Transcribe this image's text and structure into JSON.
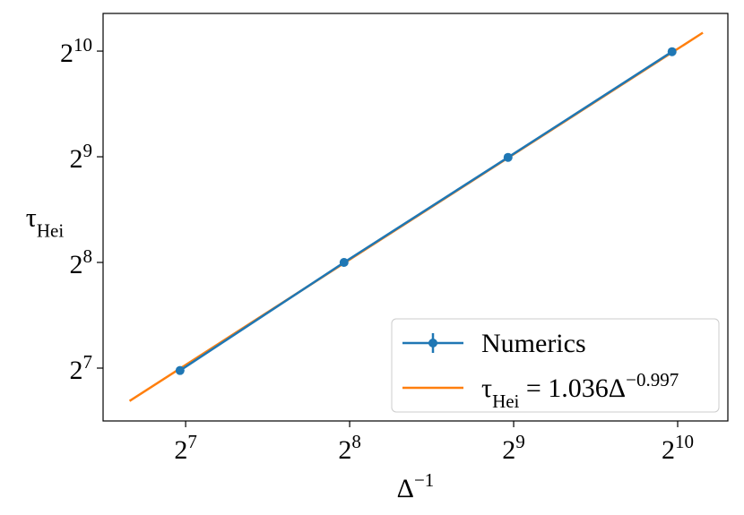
{
  "chart_data": {
    "type": "line",
    "x_scale": "log2",
    "y_scale": "log2",
    "xlabel": "Δ^{−1}",
    "ylabel": "τ_{Hei}",
    "xlim": [
      90.3,
      1266
    ],
    "ylim": [
      90.5,
      1311
    ],
    "xticks": [
      {
        "value": 128,
        "label": "2^{7}"
      },
      {
        "value": 256,
        "label": "2^{8}"
      },
      {
        "value": 512,
        "label": "2^{9}"
      },
      {
        "value": 1024,
        "label": "2^{10}"
      }
    ],
    "yticks": [
      {
        "value": 128,
        "label": "2^{7}"
      },
      {
        "value": 256,
        "label": "2^{8}"
      },
      {
        "value": 512,
        "label": "2^{9}"
      },
      {
        "value": 1024,
        "label": "2^{10}"
      }
    ],
    "legend": "lower right",
    "series": [
      {
        "name": "τ_{Hei} = 1.036Δ^{−0.997}",
        "color": "#ff7f0e",
        "marker": false,
        "x": [
          101,
          1139
        ],
        "values": [
          103.2,
          1155.4
        ]
      },
      {
        "name": "Numerics",
        "color": "#1f77b4",
        "marker": true,
        "x": [
          125,
          250,
          500,
          1000
        ],
        "values": [
          126,
          256,
          510,
          1020
        ]
      }
    ]
  }
}
